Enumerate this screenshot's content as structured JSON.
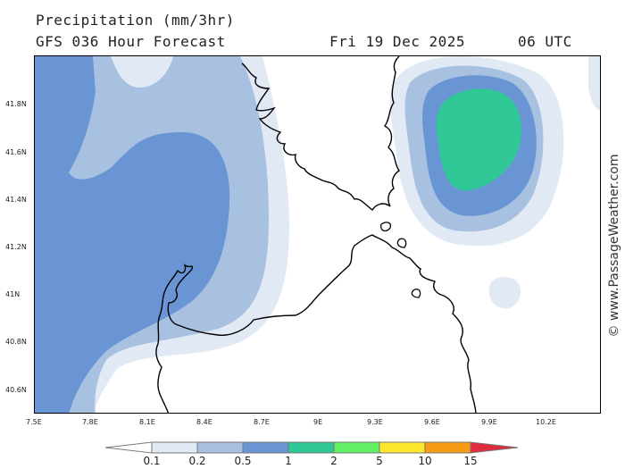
{
  "header": {
    "title": "Precipitation (mm/3hr)",
    "subtitle": "GFS 036 Hour Forecast",
    "date": "Fri 19 Dec 2025",
    "time": "06 UTC"
  },
  "map": {
    "lat_ticks": [
      "41.8N",
      "41.6N",
      "41.4N",
      "41.2N",
      "41N",
      "40.8N",
      "40.6N"
    ],
    "lon_ticks": [
      "7.5E",
      "7.8E",
      "8.1E",
      "8.4E",
      "8.7E",
      "9E",
      "9.3E",
      "9.6E",
      "9.9E",
      "10.2E"
    ],
    "land_outline_color": "#000000"
  },
  "legend": {
    "labels": [
      "0.1",
      "0.2",
      "0.5",
      "1",
      "2",
      "5",
      "10",
      "15"
    ],
    "colors": [
      "#ffffff",
      "#e1e9f5",
      "#a8c1e0",
      "#6a95d4",
      "#31c897",
      "#64f064",
      "#fde62b",
      "#f59b14",
      "#e02c40"
    ]
  },
  "credit": "© www.PassageWeather.com"
}
